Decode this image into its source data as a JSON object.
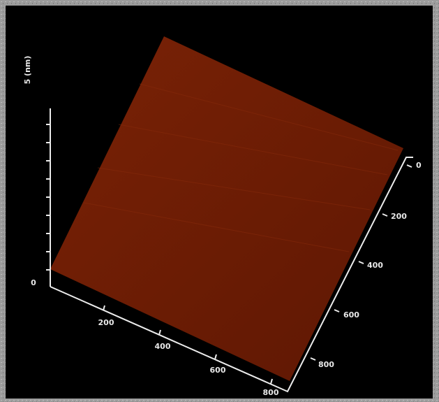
{
  "z_axis": {
    "label": "5 (nm)",
    "ticks": [
      0
    ]
  },
  "x_axis": {
    "ticks": [
      200,
      400,
      600,
      800
    ]
  },
  "y_axis": {
    "ticks": [
      0,
      200,
      400,
      600,
      800
    ]
  }
}
